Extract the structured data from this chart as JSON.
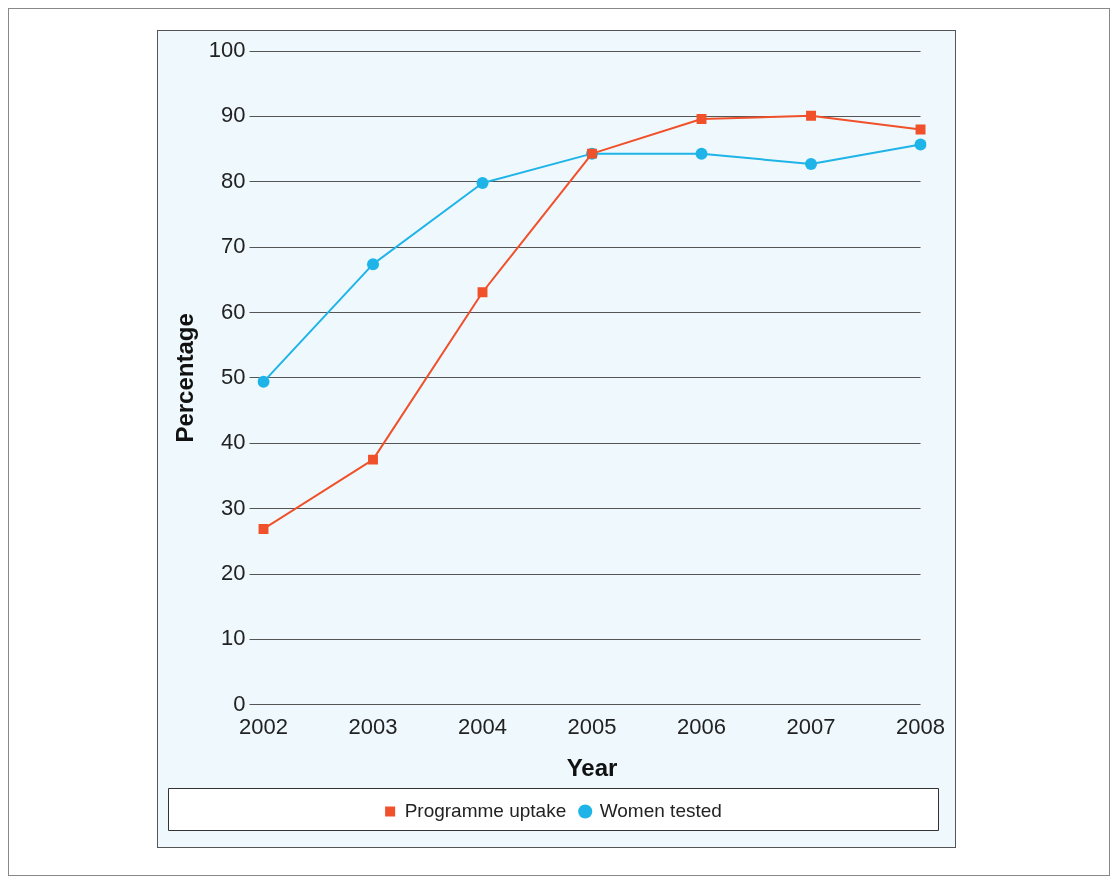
{
  "chart_data": {
    "type": "line",
    "xlabel": "Year",
    "ylabel": "Percentage",
    "categories": [
      "2002",
      "2003",
      "2004",
      "2005",
      "2006",
      "2007",
      "2008"
    ],
    "series": [
      {
        "name": "Women tested",
        "color": "#1eb4e8",
        "marker": "circle",
        "values": [
          49.4,
          67.4,
          79.8,
          84.3,
          84.3,
          82.7,
          85.7
        ]
      },
      {
        "name": "Programme uptake",
        "color": "#f0502a",
        "marker": "square",
        "values": [
          26.9,
          37.5,
          63.1,
          84.3,
          89.6,
          90.1,
          88.0
        ]
      }
    ],
    "ylim": [
      0,
      100
    ],
    "yticks": [
      0,
      10,
      20,
      30,
      40,
      50,
      60,
      70,
      80,
      90,
      100
    ],
    "grid": "y",
    "legend": "bottom",
    "line_style": "solid"
  }
}
